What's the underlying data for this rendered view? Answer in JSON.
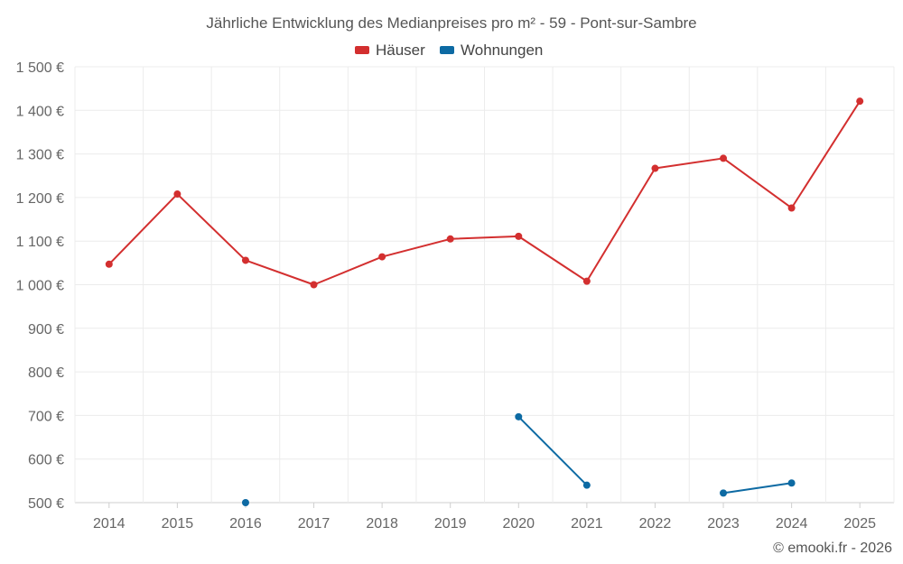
{
  "chart_data": {
    "type": "line",
    "title": "Jährliche Entwicklung des Medianpreises pro m² - 59 - Pont-sur-Sambre",
    "x": [
      "2014",
      "2015",
      "2016",
      "2017",
      "2018",
      "2019",
      "2020",
      "2021",
      "2022",
      "2023",
      "2024",
      "2025"
    ],
    "ylim": [
      500,
      1500
    ],
    "y_ticks": [
      500,
      600,
      700,
      800,
      900,
      1000,
      1100,
      1200,
      1300,
      1400,
      1500
    ],
    "y_tick_labels": [
      "500 €",
      "600 €",
      "700 €",
      "800 €",
      "900 €",
      "1 000 €",
      "1 100 €",
      "1 200 €",
      "1 300 €",
      "1 400 €",
      "1 500 €"
    ],
    "grid": true,
    "legend_position": "top-center",
    "series": [
      {
        "name": "Häuser",
        "color": "#d32f2f",
        "values": [
          1047,
          1208,
          1056,
          1000,
          1064,
          1105,
          1111,
          1008,
          1267,
          1290,
          1176,
          1421
        ]
      },
      {
        "name": "Wohnungen",
        "color": "#0d6aa3",
        "values": [
          null,
          null,
          500,
          null,
          null,
          null,
          697,
          540,
          null,
          522,
          545,
          null
        ]
      }
    ]
  },
  "credit": "© emooki.fr - 2026"
}
